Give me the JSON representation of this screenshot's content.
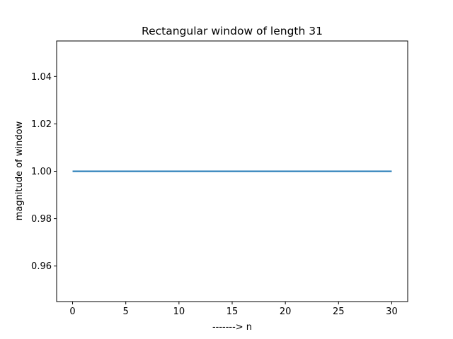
{
  "chart_data": {
    "type": "line",
    "title": "Rectangular window of length 31",
    "xlabel": "-------> n",
    "ylabel": "magnitude of window",
    "xlim": [
      -1.5,
      31.5
    ],
    "ylim": [
      0.945,
      1.055
    ],
    "xticks": [
      0,
      5,
      10,
      15,
      20,
      25,
      30
    ],
    "xtick_labels": [
      "0",
      "5",
      "10",
      "15",
      "20",
      "25",
      "30"
    ],
    "yticks": [
      0.96,
      0.98,
      1.0,
      1.02,
      1.04
    ],
    "ytick_labels": [
      "0.96",
      "0.98",
      "1.00",
      "1.02",
      "1.04"
    ],
    "grid": false,
    "series": [
      {
        "color": "#1f77b4",
        "x": [
          0,
          1,
          2,
          3,
          4,
          5,
          6,
          7,
          8,
          9,
          10,
          11,
          12,
          13,
          14,
          15,
          16,
          17,
          18,
          19,
          20,
          21,
          22,
          23,
          24,
          25,
          26,
          27,
          28,
          29,
          30
        ],
        "y": [
          1,
          1,
          1,
          1,
          1,
          1,
          1,
          1,
          1,
          1,
          1,
          1,
          1,
          1,
          1,
          1,
          1,
          1,
          1,
          1,
          1,
          1,
          1,
          1,
          1,
          1,
          1,
          1,
          1,
          1,
          1
        ]
      }
    ]
  }
}
